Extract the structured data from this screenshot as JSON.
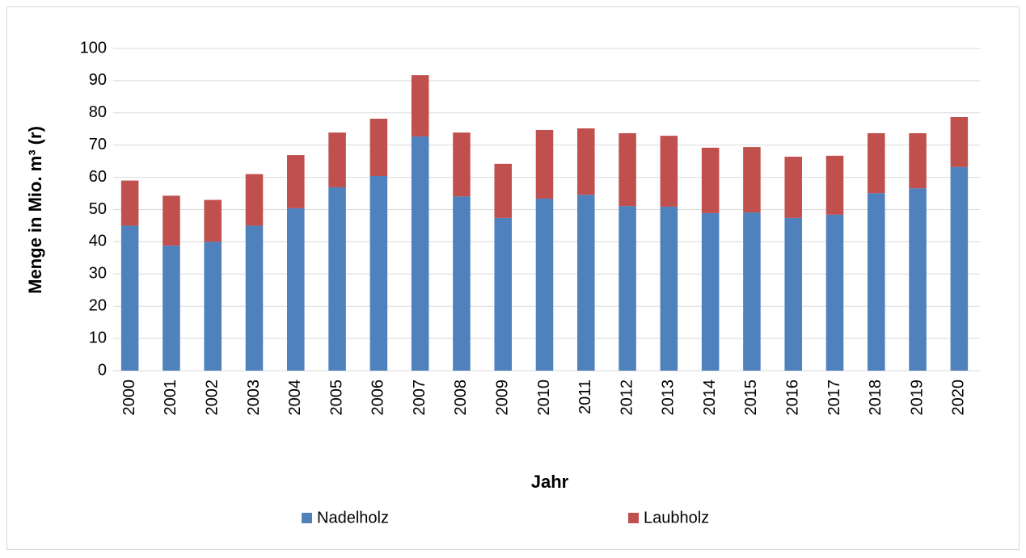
{
  "chart_data": {
    "type": "stacked_bar",
    "x_label": "Jahr",
    "y_label": "Menge in Mio. m³ (r)",
    "categories": [
      "2000",
      "2001",
      "2002",
      "2003",
      "2004",
      "2005",
      "2006",
      "2007",
      "2008",
      "2009",
      "2010",
      "2011",
      "2012",
      "2013",
      "2014",
      "2015",
      "2016",
      "2017",
      "2018",
      "2019",
      "2020"
    ],
    "series": [
      {
        "name": "Nadelholz",
        "color": "#4f81bd",
        "values": [
          45,
          38.8,
          40,
          45,
          50.4,
          56.9,
          60.4,
          72.7,
          54.1,
          47.4,
          53.4,
          54.6,
          51.1,
          50.9,
          48.9,
          49.1,
          47.4,
          48.4,
          55.1,
          56.6,
          63.2
        ]
      },
      {
        "name": "Laubholz",
        "color": "#c0504d",
        "values": [
          14,
          15.5,
          13,
          16,
          16.5,
          17,
          17.8,
          19,
          19.8,
          16.8,
          21.3,
          20.6,
          22.6,
          22,
          20.3,
          20.3,
          19,
          18.3,
          18.6,
          17.1,
          15.5
        ]
      }
    ],
    "ylim": [
      0,
      100
    ],
    "yticks": [
      0,
      10,
      20,
      30,
      40,
      50,
      60,
      70,
      80,
      90,
      100
    ],
    "grid": true,
    "legend": "bottom"
  }
}
